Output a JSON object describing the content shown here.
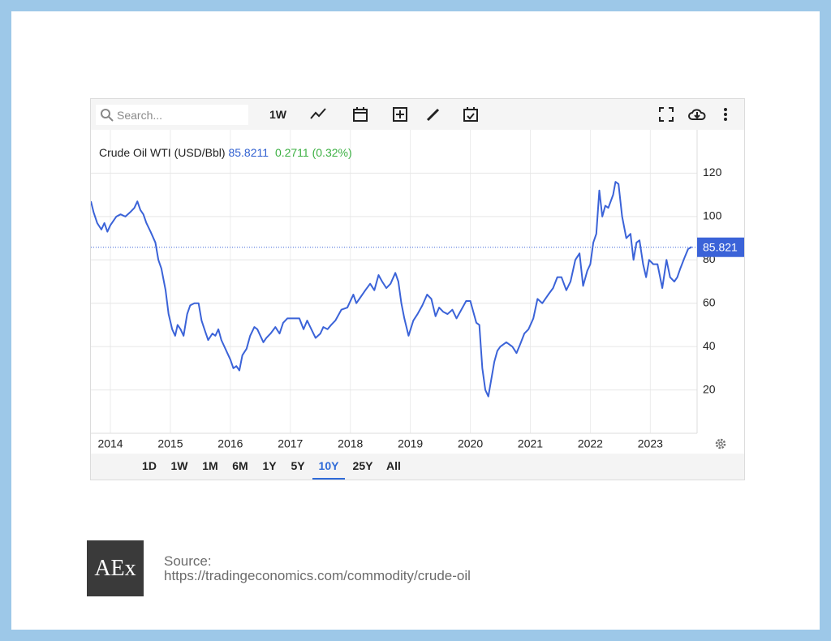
{
  "ui": {
    "search_placeholder": "Search...",
    "interval": "1W",
    "ranges": [
      "1D",
      "1W",
      "1M",
      "6M",
      "1Y",
      "5Y",
      "10Y",
      "25Y",
      "All"
    ],
    "active_range": 6
  },
  "chart_data": {
    "type": "line",
    "title": "Crude Oil WTI (USD/Bbl)",
    "last": 85.8211,
    "change": "0.2711 (0.32%)",
    "price_line": {
      "value": 85.821,
      "label": "85.821"
    },
    "color": "#3b63d8",
    "grid": true,
    "xlim": [
      2013.675,
      2023.78
    ],
    "xticks": [
      2014,
      2015,
      2016,
      2017,
      2018,
      2019,
      2020,
      2021,
      2022,
      2023
    ],
    "ylim": [
      0,
      140
    ],
    "yticks": [
      20,
      40,
      60,
      80,
      100,
      120
    ],
    "x": [
      2013.675,
      2013.72,
      2013.78,
      2013.85,
      2013.9,
      2013.95,
      2014.0,
      2014.05,
      2014.1,
      2014.17,
      2014.25,
      2014.33,
      2014.4,
      2014.45,
      2014.5,
      2014.55,
      2014.6,
      2014.67,
      2014.75,
      2014.8,
      2014.85,
      2014.92,
      2014.97,
      2015.03,
      2015.08,
      2015.12,
      2015.17,
      2015.22,
      2015.28,
      2015.33,
      2015.4,
      2015.47,
      2015.52,
      2015.58,
      2015.63,
      2015.7,
      2015.75,
      2015.8,
      2015.85,
      2015.9,
      2015.95,
      2016.0,
      2016.05,
      2016.1,
      2016.15,
      2016.2,
      2016.27,
      2016.33,
      2016.4,
      2016.45,
      2016.5,
      2016.55,
      2016.6,
      2016.67,
      2016.75,
      2016.82,
      2016.88,
      2016.95,
      2017.05,
      2017.15,
      2017.22,
      2017.28,
      2017.35,
      2017.42,
      2017.5,
      2017.55,
      2017.62,
      2017.68,
      2017.75,
      2017.85,
      2017.95,
      2018.05,
      2018.1,
      2018.15,
      2018.25,
      2018.33,
      2018.4,
      2018.47,
      2018.53,
      2018.6,
      2018.67,
      2018.75,
      2018.8,
      2018.85,
      2018.9,
      2018.97,
      2019.05,
      2019.12,
      2019.2,
      2019.28,
      2019.35,
      2019.42,
      2019.48,
      2019.55,
      2019.62,
      2019.7,
      2019.77,
      2019.85,
      2019.93,
      2020.0,
      2020.05,
      2020.1,
      2020.15,
      2020.2,
      2020.25,
      2020.3,
      2020.35,
      2020.4,
      2020.45,
      2020.5,
      2020.6,
      2020.7,
      2020.77,
      2020.83,
      2020.9,
      2020.97,
      2021.05,
      2021.12,
      2021.2,
      2021.3,
      2021.38,
      2021.45,
      2021.52,
      2021.6,
      2021.67,
      2021.75,
      2021.82,
      2021.88,
      2021.95,
      2022.0,
      2022.05,
      2022.1,
      2022.15,
      2022.2,
      2022.25,
      2022.3,
      2022.38,
      2022.42,
      2022.47,
      2022.53,
      2022.6,
      2022.67,
      2022.72,
      2022.77,
      2022.82,
      2022.88,
      2022.93,
      2022.98,
      2023.05,
      2023.12,
      2023.2,
      2023.27,
      2023.33,
      2023.4,
      2023.45,
      2023.5,
      2023.57,
      2023.63,
      2023.69
    ],
    "series": [
      {
        "name": "Crude Oil WTI",
        "color": "#3b63d8",
        "values": [
          107,
          102,
          97,
          94,
          97,
          93,
          96,
          98,
          100,
          101,
          100,
          102,
          104,
          107,
          103,
          101,
          97,
          93,
          88,
          80,
          76,
          66,
          55,
          48,
          45,
          50,
          48,
          45,
          55,
          59,
          60,
          60,
          52,
          47,
          43,
          46,
          45,
          48,
          43,
          40,
          37,
          34,
          30,
          31,
          29,
          36,
          39,
          45,
          49,
          48,
          45,
          42,
          44,
          46,
          49,
          46,
          51,
          53,
          53,
          53,
          48,
          52,
          48,
          44,
          46,
          49,
          48,
          50,
          52,
          57,
          58,
          64,
          60,
          62,
          66,
          69,
          66,
          73,
          70,
          67,
          69,
          74,
          70,
          60,
          53,
          45,
          52,
          55,
          59,
          64,
          62,
          54,
          58,
          56,
          55,
          57,
          53,
          57,
          61,
          61,
          56,
          51,
          50,
          30,
          20,
          17,
          25,
          33,
          38,
          40,
          42,
          40,
          37,
          41,
          46,
          48,
          53,
          62,
          60,
          64,
          67,
          72,
          72,
          66,
          70,
          80,
          83,
          68,
          75,
          78,
          88,
          92,
          112,
          100,
          105,
          104,
          110,
          116,
          115,
          100,
          90,
          92,
          80,
          88,
          89,
          78,
          72,
          80,
          78,
          78,
          67,
          80,
          72,
          70,
          72,
          76,
          81,
          85,
          86
        ]
      }
    ]
  },
  "footer": {
    "logo": "AEx",
    "source_label": "Source:",
    "source_url": "https://tradingeconomics.com/commodity/crude-oil"
  }
}
